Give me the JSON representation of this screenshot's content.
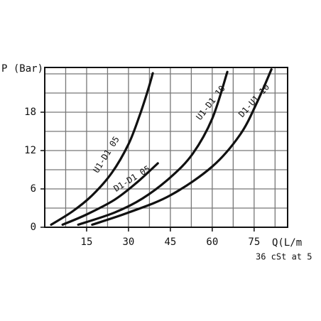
{
  "chart_data": {
    "type": "line",
    "y_label": "P (Bar)",
    "x_label": "Q(L/m",
    "note": "36 cSt at 5",
    "xlim": [
      0,
      87
    ],
    "ylim": [
      0,
      25
    ],
    "xticks": [
      15,
      30,
      45,
      60,
      75
    ],
    "yticks": [
      0,
      6,
      12,
      18
    ],
    "x_gridlines": [
      7.5,
      15,
      22.5,
      30,
      37.5,
      45,
      52.5,
      60,
      67.5,
      75,
      82.5
    ],
    "y_gridlines": [
      3,
      6,
      9,
      12,
      15,
      18,
      21,
      24
    ],
    "grid": true,
    "series": [
      {
        "name": "U1-D1 05",
        "color": "#111111",
        "x": [
          2.3,
          10,
          17,
          24,
          30,
          34,
          37,
          38.7
        ],
        "values": [
          0.4,
          2.5,
          5,
          8.5,
          13,
          17.5,
          21.5,
          24.1
        ]
      },
      {
        "name": "D1-D1 05",
        "color": "#111111",
        "x": [
          6.4,
          15,
          25,
          33,
          40.5
        ],
        "values": [
          0.4,
          2,
          4.3,
          7,
          10
        ]
      },
      {
        "name": "U1-D1 10",
        "color": "#111111",
        "x": [
          12,
          25,
          35,
          45,
          53,
          60,
          65.4
        ],
        "values": [
          0.4,
          2.3,
          4.5,
          7.8,
          11.5,
          17,
          24.3
        ]
      },
      {
        "name": "D1-U1 10",
        "color": "#111111",
        "x": [
          17,
          30,
          45,
          60,
          70,
          76,
          81.2
        ],
        "values": [
          0.4,
          2.3,
          5,
          9.5,
          14.5,
          19.5,
          24.7
        ]
      }
    ]
  }
}
